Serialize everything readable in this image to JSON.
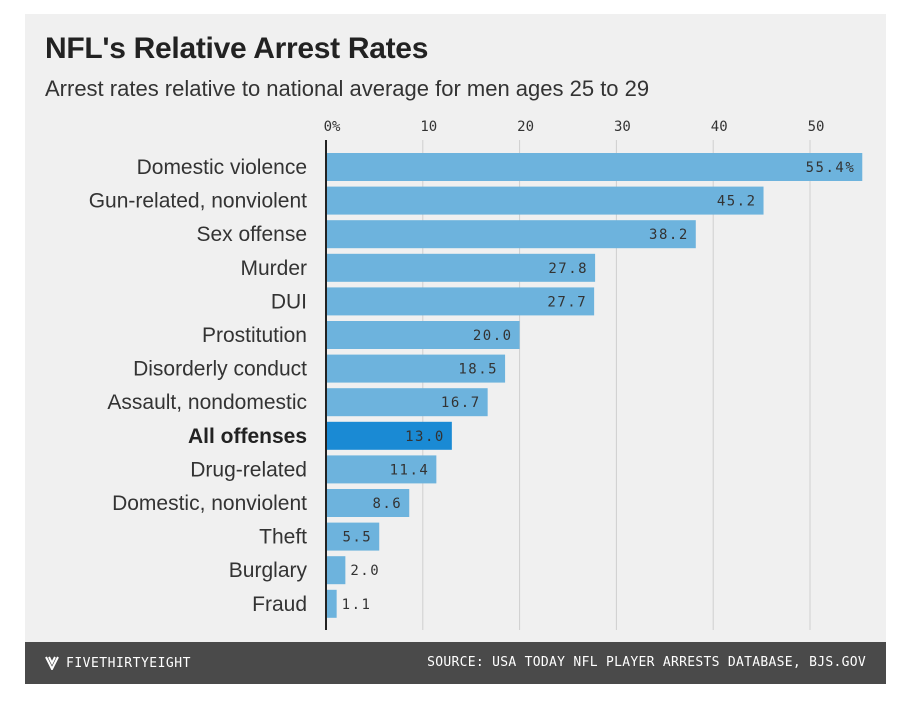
{
  "header": {
    "title": "NFL's Relative Arrest Rates",
    "subtitle": "Arrest rates relative to national average for men ages 25 to 29"
  },
  "footer": {
    "brand": "FIVETHIRTYEIGHT",
    "brand_icon": "fivethirtyeight-logo-icon",
    "source": "SOURCE: USA TODAY NFL PLAYER ARRESTS DATABASE, BJS.GOV"
  },
  "colors": {
    "bar": "#6db3dd",
    "highlight_bar": "#1a8ad4",
    "background": "#f0f0f0",
    "footer": "#4a4a4a"
  },
  "chart_data": {
    "type": "bar",
    "orientation": "horizontal",
    "title": "NFL's Relative Arrest Rates",
    "subtitle": "Arrest rates relative to national average for men ages 25 to 29",
    "categories": [
      "Domestic violence",
      "Gun-related, nonviolent",
      "Sex offense",
      "Murder",
      "DUI",
      "Prostitution",
      "Disorderly conduct",
      "Assault, nondomestic",
      "All offenses",
      "Drug-related",
      "Domestic, nonviolent",
      "Theft",
      "Burglary",
      "Fraud"
    ],
    "values": [
      55.4,
      45.2,
      38.2,
      27.8,
      27.7,
      20.0,
      18.5,
      16.7,
      13.0,
      11.4,
      8.6,
      5.5,
      2.0,
      1.1
    ],
    "value_labels": [
      "55.4%",
      "45.2",
      "38.2",
      "27.8",
      "27.7",
      "20.0",
      "18.5",
      "16.7",
      "13.0",
      "11.4",
      "8.6",
      "5.5",
      "2.0",
      "1.1"
    ],
    "highlight": "All offenses",
    "xticks": [
      0,
      10,
      20,
      30,
      40,
      50
    ],
    "xtick_labels": [
      "0%",
      "10",
      "20",
      "30",
      "40",
      "50"
    ],
    "xlim": [
      0,
      56
    ],
    "axis_position": "top",
    "grid": true,
    "legend": "none"
  }
}
